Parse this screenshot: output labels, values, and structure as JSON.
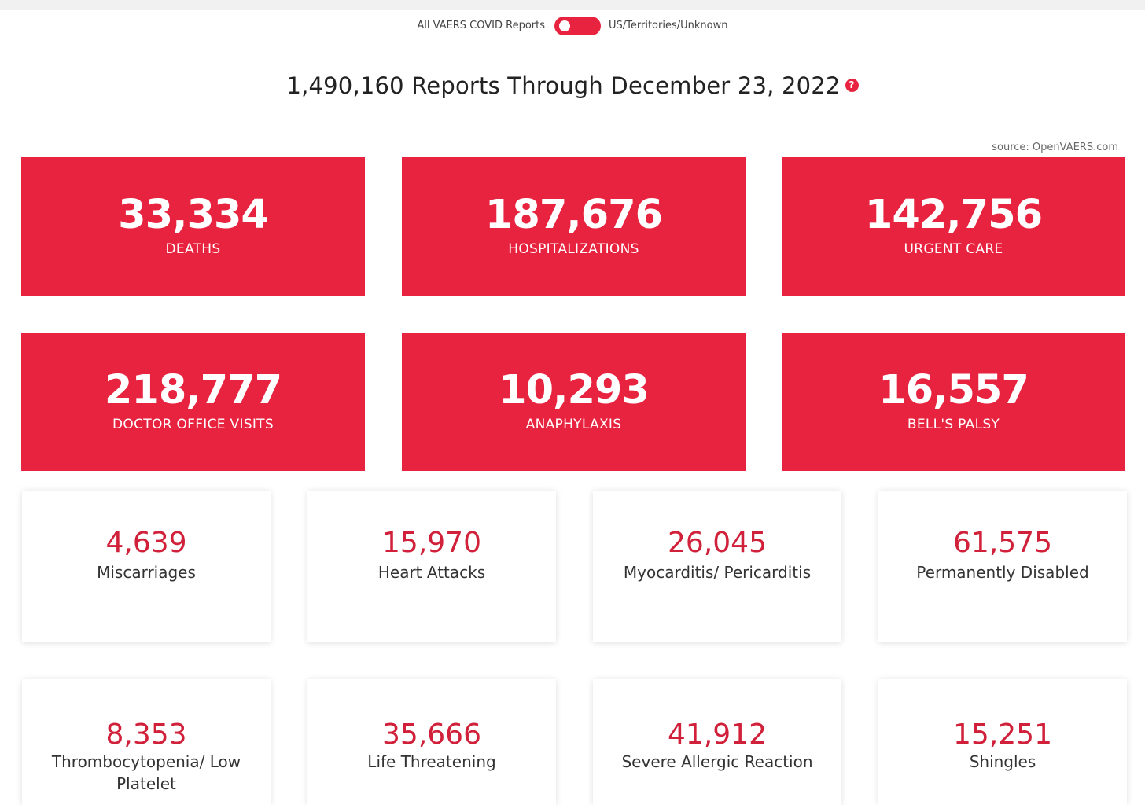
{
  "colors": {
    "accent": "#e8233f",
    "accent_text": "#d0203a"
  },
  "toggle": {
    "left_label": "All VAERS COVID Reports",
    "right_label": "US/Territories/Unknown",
    "state": "on"
  },
  "headline": {
    "text": "1,490,160 Reports Through December 23, 2022",
    "help_icon": "question-circle-icon",
    "help_glyph": "?"
  },
  "source": "source: OpenVAERS.com",
  "primary_stats": [
    {
      "value": "33,334",
      "label": "DEATHS"
    },
    {
      "value": "187,676",
      "label": "HOSPITALIZATIONS"
    },
    {
      "value": "142,756",
      "label": "URGENT CARE"
    },
    {
      "value": "218,777",
      "label": "DOCTOR OFFICE VISITS"
    },
    {
      "value": "10,293",
      "label": "ANAPHYLAXIS"
    },
    {
      "value": "16,557",
      "label": "BELL'S PALSY"
    }
  ],
  "secondary_stats": [
    {
      "value": "4,639",
      "label": "Miscarriages"
    },
    {
      "value": "15,970",
      "label": "Heart Attacks"
    },
    {
      "value": "26,045",
      "label": "Myocarditis/ Pericarditis"
    },
    {
      "value": "61,575",
      "label": "Permanently Disabled"
    },
    {
      "value": "8,353",
      "label": "Thrombocytopenia/ Low Platelet"
    },
    {
      "value": "35,666",
      "label": "Life Threatening"
    },
    {
      "value": "41,912",
      "label": "Severe Allergic Reaction"
    },
    {
      "value": "15,251",
      "label": "Shingles"
    }
  ]
}
